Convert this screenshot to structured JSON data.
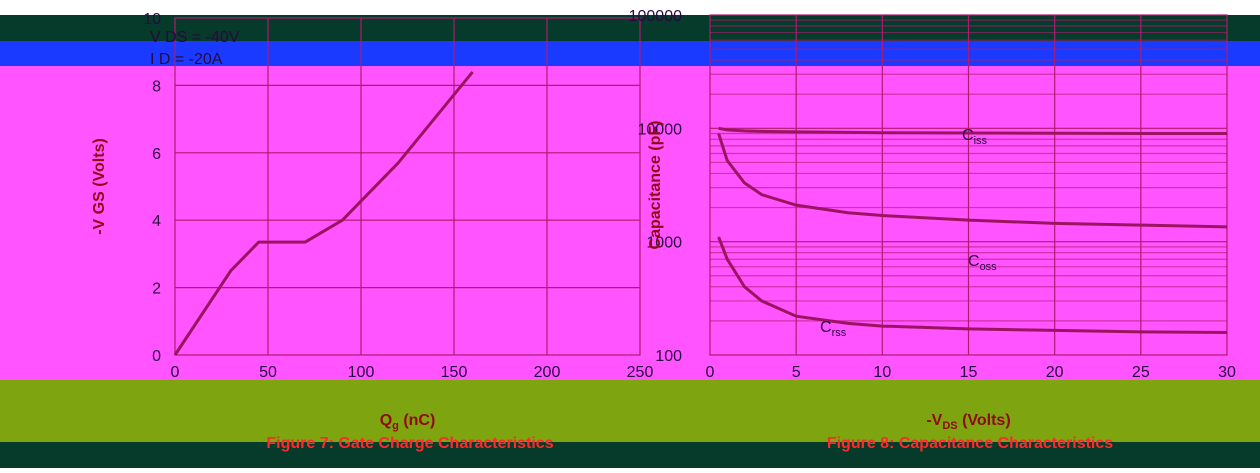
{
  "chart_data": [
    {
      "type": "line",
      "title": "",
      "caption": "Figure 7: Gate Charge Characteristics",
      "xlabel_main": "Q",
      "xlabel_sub": "g",
      "xlabel_unit": " (nC)",
      "ylabel": "-V GS (Volts)",
      "annotations": [
        "V DS = -40V",
        "I D = -20A"
      ],
      "xlim": [
        0,
        250
      ],
      "ylim": [
        0,
        10
      ],
      "x_ticks": [
        "0",
        "50",
        "100",
        "150",
        "200",
        "250"
      ],
      "y_ticks": [
        "0",
        "2",
        "4",
        "6",
        "8",
        "10"
      ],
      "series": [
        {
          "x": [
            0,
            30,
            45,
            70,
            90,
            120,
            160
          ],
          "y": [
            0,
            2.5,
            3.35,
            3.35,
            4.0,
            5.7,
            8.4
          ]
        }
      ]
    },
    {
      "type": "line",
      "title": "",
      "caption": "Figure 8: Capacitance Characteristics",
      "xlabel_main": "-V",
      "xlabel_sub": "DS",
      "xlabel_unit": " (Volts)",
      "ylabel": "Capacitance (pF)",
      "yscale": "log",
      "xlim": [
        0,
        30
      ],
      "ylim": [
        100,
        100000
      ],
      "x_ticks": [
        "0",
        "5",
        "10",
        "15",
        "20",
        "25",
        "30"
      ],
      "y_ticks": [
        "100",
        "1000",
        "10000",
        "100000"
      ],
      "series": [
        {
          "name": "Ciss",
          "x": [
            0.5,
            1,
            2,
            3,
            5,
            8,
            10,
            15,
            20,
            25,
            30
          ],
          "y": [
            10000,
            9700,
            9500,
            9400,
            9300,
            9200,
            9150,
            9100,
            9050,
            9000,
            9000
          ]
        },
        {
          "name": "Coss",
          "x": [
            0.5,
            1,
            2,
            3,
            5,
            8,
            10,
            15,
            20,
            25,
            30
          ],
          "y": [
            9000,
            5200,
            3300,
            2600,
            2100,
            1800,
            1700,
            1550,
            1450,
            1400,
            1350
          ]
        },
        {
          "name": "Crss",
          "x": [
            0.5,
            1,
            2,
            3,
            5,
            8,
            10,
            15,
            20,
            25,
            30
          ],
          "y": [
            1100,
            700,
            400,
            300,
            220,
            190,
            180,
            170,
            165,
            160,
            158
          ]
        }
      ],
      "series_labels": [
        {
          "main": "C",
          "sub": "iss"
        },
        {
          "main": "C",
          "sub": "oss"
        },
        {
          "main": "C",
          "sub": "rss"
        }
      ]
    }
  ],
  "colors": {
    "band_dark": "#063a2a",
    "band_blue": "#1a3bff",
    "band_pink": "#ff54ff",
    "band_olive": "#7ea40f",
    "curve": "#9b1462",
    "grid": "#b01a70"
  }
}
